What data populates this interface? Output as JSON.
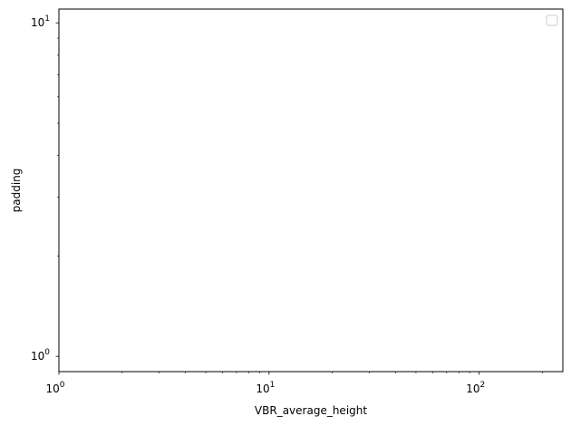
{
  "chart_data": {
    "type": "line",
    "title": "",
    "xlabel": "VBR_average_height",
    "ylabel": "padding",
    "xscale": "log",
    "yscale": "log",
    "xlim": [
      1,
      250
    ],
    "ylim": [
      0.9,
      11
    ],
    "x_major_ticks": [
      {
        "value": 1,
        "base": "10",
        "exp": "0"
      },
      {
        "value": 10,
        "base": "10",
        "exp": "1"
      },
      {
        "value": 100,
        "base": "10",
        "exp": "2"
      }
    ],
    "y_major_ticks": [
      {
        "value": 1,
        "base": "10",
        "exp": "0"
      },
      {
        "value": 10,
        "base": "10",
        "exp": "1"
      }
    ],
    "series": [],
    "grid": false,
    "legend": {
      "placement": "upper right",
      "entries": []
    }
  }
}
